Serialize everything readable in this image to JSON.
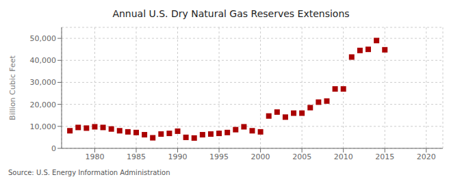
{
  "chart_data": {
    "type": "scatter",
    "title": "Annual U.S. Dry Natural Gas Reserves Extensions",
    "y_label": "Billion Cubic Feet",
    "annotations": [
      "Source: U.S. Energy Information Administration"
    ],
    "x": [
      1977,
      1978,
      1979,
      1980,
      1981,
      1982,
      1983,
      1984,
      1985,
      1986,
      1987,
      1988,
      1989,
      1990,
      1991,
      1992,
      1993,
      1994,
      1995,
      1996,
      1997,
      1998,
      1999,
      2000,
      2001,
      2002,
      2003,
      2004,
      2005,
      2006,
      2007,
      2008,
      2009,
      2010,
      2011,
      2012,
      2013,
      2014,
      2015
    ],
    "values": [
      8000,
      9500,
      9200,
      9800,
      9500,
      8800,
      8000,
      7500,
      7200,
      6200,
      4800,
      6500,
      6800,
      7800,
      5000,
      4700,
      6200,
      6500,
      6800,
      7200,
      8500,
      9800,
      8000,
      7500,
      14700,
      16500,
      14200,
      16000,
      16000,
      18500,
      21000,
      21500,
      27000,
      27000,
      41500,
      44500,
      45000,
      49000,
      44800
    ],
    "color": "#AA0000",
    "marker": "square",
    "xlim": [
      1976,
      2022
    ],
    "ylim": [
      0,
      55000
    ],
    "xticks": [
      1980,
      1985,
      1990,
      1995,
      2000,
      2005,
      2010,
      2015,
      2020
    ],
    "yticks": [
      0,
      {
        "value": 10000,
        "label": "10,000"
      },
      {
        "value": 20000,
        "label": "20,000"
      },
      {
        "value": 30000,
        "label": "30,000"
      },
      {
        "value": 40000,
        "label": "40,000"
      },
      {
        "value": 50000,
        "label": "50,000"
      }
    ],
    "grid": true
  }
}
